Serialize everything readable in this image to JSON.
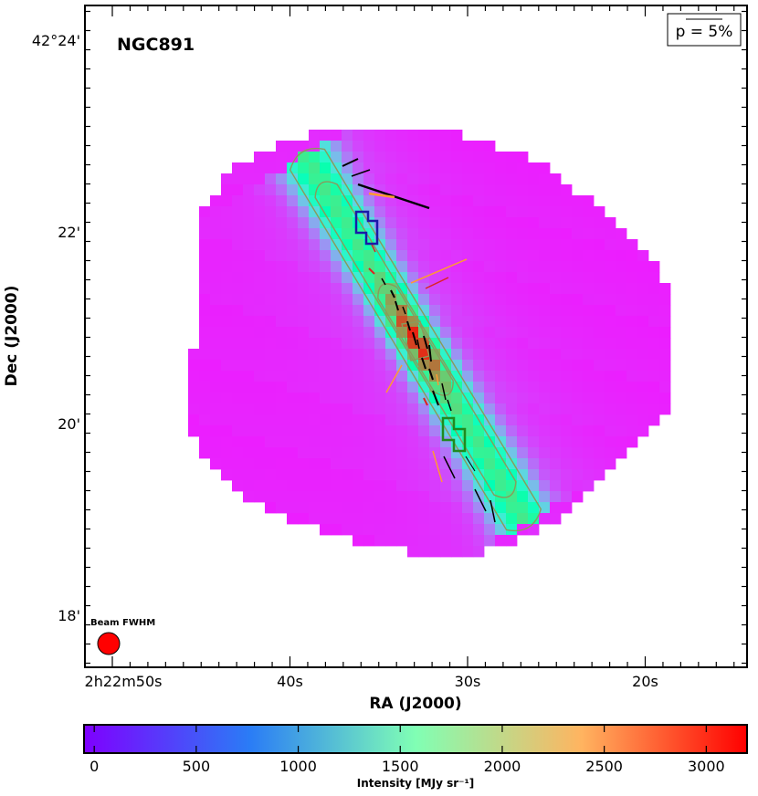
{
  "chart_data": {
    "type": "heatmap",
    "object_label": "NGC891",
    "xlabel": "RA (J2000)",
    "ylabel": "Dec (J2000)",
    "x_ticks": [
      {
        "value": 50,
        "label": "2h22m50s"
      },
      {
        "value": 40,
        "label": "40s"
      },
      {
        "value": 30,
        "label": "30s"
      },
      {
        "value": 20,
        "label": "20s"
      }
    ],
    "y_ticks": [
      {
        "value": 24,
        "label": "42°24'"
      },
      {
        "value": 22,
        "label": "22'"
      },
      {
        "value": 20,
        "label": "20'"
      },
      {
        "value": 18,
        "label": "18'"
      }
    ],
    "xlim_seconds": [
      51.1,
      14.0
    ],
    "ylim_arcmin": [
      17.5,
      24.45
    ],
    "colorbar": {
      "label": "Intensity [MJy sr⁻¹]",
      "range": [
        -50,
        3200
      ],
      "ticks": [
        0,
        500,
        1000,
        1500,
        2000,
        2500,
        3000
      ],
      "colormap": "rainbow"
    },
    "polarization_legend": "p = 5%",
    "beam_label": "Beam FWHM",
    "vector_colors": [
      "#000000",
      "#ff9933",
      "#dd2222"
    ],
    "region_colors": [
      "#1a1aa8",
      "#1f8a1f"
    ],
    "contour_color": "#8a9a5b"
  }
}
